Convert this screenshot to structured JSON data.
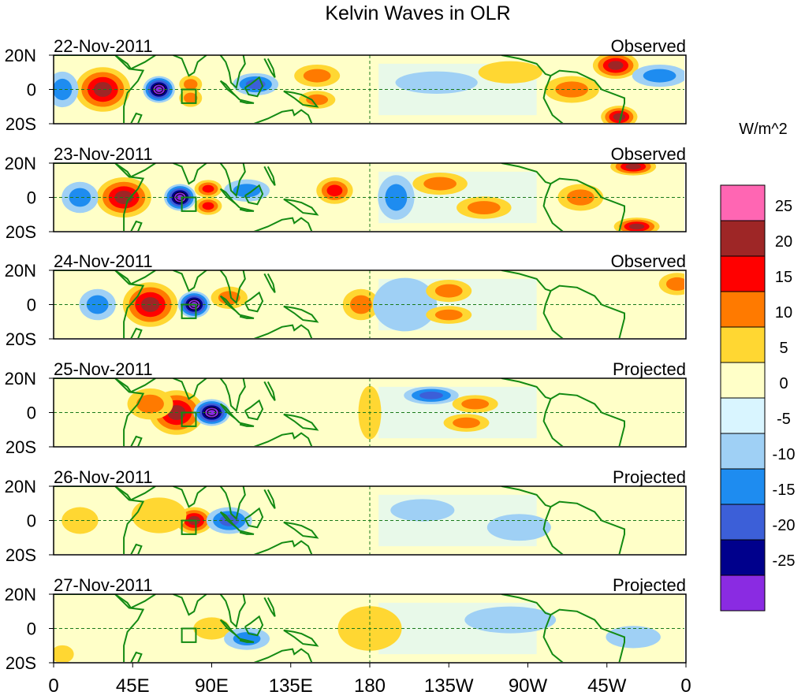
{
  "chart_data": {
    "type": "heatmap",
    "title": "Kelvin Waves in OLR",
    "units_label": "W/m^2",
    "x_ticks": [
      "0",
      "45E",
      "90E",
      "135E",
      "180",
      "135W",
      "90W",
      "45W",
      "0"
    ],
    "x_tick_lon": [
      0,
      45,
      90,
      135,
      180,
      225,
      270,
      315,
      360
    ],
    "y_ticks": [
      "20N",
      "0",
      "20S"
    ],
    "y_tick_lat": [
      20,
      0,
      -20
    ],
    "lon_range": [
      0,
      360
    ],
    "lat_range": [
      -20,
      20
    ],
    "colorbar": {
      "levels": [
        "25",
        "20",
        "15",
        "10",
        "5",
        "0",
        "-5",
        "-10",
        "-15",
        "-20",
        "-25"
      ],
      "colors": [
        "#ff66b3",
        "#9e2626",
        "#ff0000",
        "#ff7a00",
        "#ffd732",
        "#ffffc8",
        "#d9f5ff",
        "#9fd0f5",
        "#1e8cf0",
        "#3c5fd8",
        "#00008c",
        "#8a2be2"
      ]
    },
    "panels": [
      {
        "date": "22-Nov-2011",
        "label": "Observed",
        "anomalies": [
          {
            "lon": 28,
            "lat": 0,
            "w": 12,
            "h": 10,
            "value": 20
          },
          {
            "lon": 60,
            "lat": 0,
            "w": 7,
            "h": 6,
            "value": -25
          },
          {
            "lon": 78,
            "lat": 3,
            "w": 5,
            "h": 4,
            "value": 10
          },
          {
            "lon": 78,
            "lat": -5,
            "w": 5,
            "h": 4,
            "value": 10
          },
          {
            "lon": 5,
            "lat": 0,
            "w": 7,
            "h": 8,
            "value": -10
          },
          {
            "lon": 150,
            "lat": 8,
            "w": 10,
            "h": 5,
            "value": 10
          },
          {
            "lon": 150,
            "lat": -6,
            "w": 8,
            "h": 4,
            "value": 10
          },
          {
            "lon": 115,
            "lat": 3,
            "w": 10,
            "h": 5,
            "value": -15
          },
          {
            "lon": 320,
            "lat": 14,
            "w": 10,
            "h": 6,
            "value": 20
          },
          {
            "lon": 322,
            "lat": -16,
            "w": 8,
            "h": 5,
            "value": 20
          },
          {
            "lon": 295,
            "lat": 0,
            "w": 12,
            "h": 6,
            "value": 10
          },
          {
            "lon": 345,
            "lat": 8,
            "w": 12,
            "h": 5,
            "value": -10
          },
          {
            "lon": 218,
            "lat": 4,
            "w": 18,
            "h": 5,
            "value": -5
          },
          {
            "lon": 260,
            "lat": 10,
            "w": 14,
            "h": 5,
            "value": 5
          }
        ]
      },
      {
        "date": "23-Nov-2011",
        "label": "Observed",
        "anomalies": [
          {
            "lon": 40,
            "lat": 0,
            "w": 12,
            "h": 9,
            "value": 20
          },
          {
            "lon": 72,
            "lat": 0,
            "w": 7,
            "h": 6,
            "value": -25
          },
          {
            "lon": 88,
            "lat": 5,
            "w": 6,
            "h": 4,
            "value": 15
          },
          {
            "lon": 88,
            "lat": -5,
            "w": 6,
            "h": 4,
            "value": 15
          },
          {
            "lon": 15,
            "lat": 0,
            "w": 8,
            "h": 7,
            "value": -10
          },
          {
            "lon": 160,
            "lat": 4,
            "w": 8,
            "h": 6,
            "value": 15
          },
          {
            "lon": 110,
            "lat": 4,
            "w": 10,
            "h": 5,
            "value": -10
          },
          {
            "lon": 195,
            "lat": 0,
            "w": 8,
            "h": 10,
            "value": -10
          },
          {
            "lon": 330,
            "lat": 18,
            "w": 10,
            "h": 4,
            "value": 20
          },
          {
            "lon": 332,
            "lat": -17,
            "w": 10,
            "h": 4,
            "value": 20
          },
          {
            "lon": 245,
            "lat": -6,
            "w": 12,
            "h": 5,
            "value": 10
          },
          {
            "lon": 220,
            "lat": 8,
            "w": 12,
            "h": 5,
            "value": 10
          },
          {
            "lon": 300,
            "lat": 0,
            "w": 10,
            "h": 6,
            "value": 10
          }
        ]
      },
      {
        "date": "24-Nov-2011",
        "label": "Observed",
        "anomalies": [
          {
            "lon": 55,
            "lat": 0,
            "w": 12,
            "h": 10,
            "value": 20
          },
          {
            "lon": 80,
            "lat": 0,
            "w": 7,
            "h": 6,
            "value": -25
          },
          {
            "lon": 25,
            "lat": 0,
            "w": 8,
            "h": 7,
            "value": -10
          },
          {
            "lon": 100,
            "lat": 4,
            "w": 8,
            "h": 5,
            "value": 10
          },
          {
            "lon": 175,
            "lat": 0,
            "w": 8,
            "h": 7,
            "value": 10
          },
          {
            "lon": 200,
            "lat": 0,
            "w": 14,
            "h": 12,
            "value": -5
          },
          {
            "lon": 225,
            "lat": 8,
            "w": 10,
            "h": 5,
            "value": 10
          },
          {
            "lon": 225,
            "lat": -6,
            "w": 10,
            "h": 4,
            "value": 10
          },
          {
            "lon": 355,
            "lat": 12,
            "w": 8,
            "h": 5,
            "value": 10
          }
        ]
      },
      {
        "date": "25-Nov-2011",
        "label": "Projected",
        "anomalies": [
          {
            "lon": 70,
            "lat": 0,
            "w": 12,
            "h": 10,
            "value": 20
          },
          {
            "lon": 90,
            "lat": 0,
            "w": 8,
            "h": 6,
            "value": -25
          },
          {
            "lon": 55,
            "lat": 5,
            "w": 10,
            "h": 7,
            "value": 10
          },
          {
            "lon": 215,
            "lat": 10,
            "w": 12,
            "h": 4,
            "value": -15
          },
          {
            "lon": 240,
            "lat": 5,
            "w": 10,
            "h": 4,
            "value": 10
          },
          {
            "lon": 235,
            "lat": -6,
            "w": 10,
            "h": 4,
            "value": 10
          },
          {
            "lon": 180,
            "lat": 0,
            "w": 5,
            "h": 12,
            "value": 5
          }
        ]
      },
      {
        "date": "26-Nov-2011",
        "label": "Projected",
        "anomalies": [
          {
            "lon": 80,
            "lat": 0,
            "w": 8,
            "h": 6,
            "value": 20
          },
          {
            "lon": 100,
            "lat": 0,
            "w": 10,
            "h": 6,
            "value": -15
          },
          {
            "lon": 60,
            "lat": 3,
            "w": 12,
            "h": 8,
            "value": 5
          },
          {
            "lon": 210,
            "lat": 6,
            "w": 14,
            "h": 5,
            "value": -5
          },
          {
            "lon": 265,
            "lat": -4,
            "w": 14,
            "h": 6,
            "value": -5
          },
          {
            "lon": 15,
            "lat": 0,
            "w": 8,
            "h": 6,
            "value": 5
          }
        ]
      },
      {
        "date": "27-Nov-2011",
        "label": "Projected",
        "anomalies": [
          {
            "lon": 90,
            "lat": 0,
            "w": 8,
            "h": 5,
            "value": 5
          },
          {
            "lon": 110,
            "lat": -6,
            "w": 10,
            "h": 5,
            "value": -10
          },
          {
            "lon": 5,
            "lat": -15,
            "w": 5,
            "h": 4,
            "value": 5
          },
          {
            "lon": 180,
            "lat": 0,
            "w": 14,
            "h": 10,
            "value": 5
          },
          {
            "lon": 260,
            "lat": 5,
            "w": 20,
            "h": 6,
            "value": -5
          },
          {
            "lon": 330,
            "lat": -5,
            "w": 12,
            "h": 5,
            "value": -5
          }
        ]
      }
    ]
  }
}
